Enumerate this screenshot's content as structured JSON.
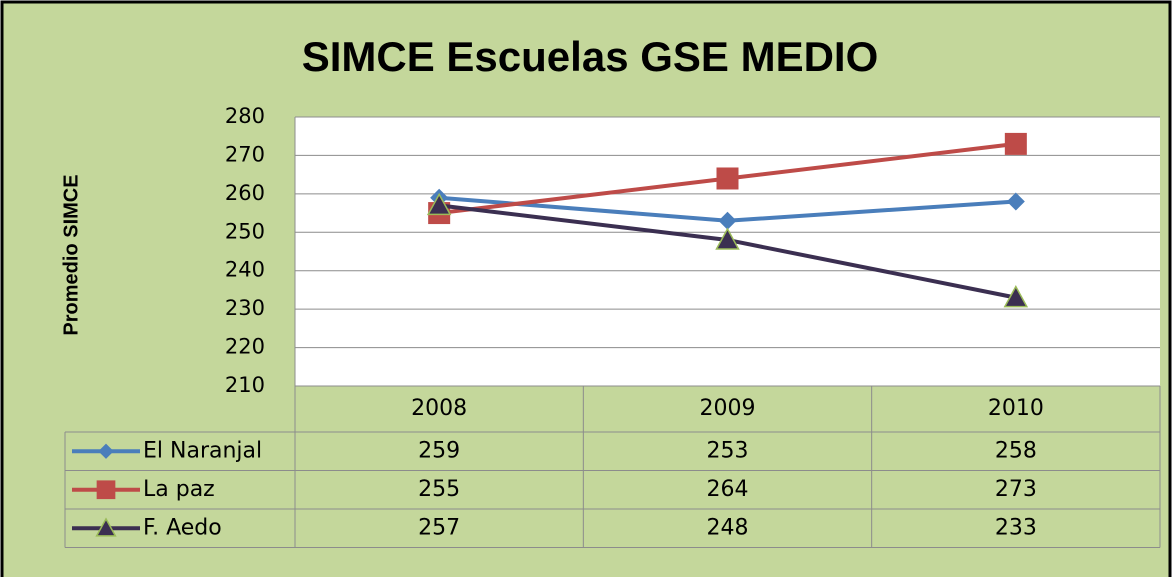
{
  "chart_data": {
    "type": "line",
    "title": "SIMCE Escuelas GSE MEDIO",
    "y_label": "Promedio SIMCE",
    "categories": [
      "2008",
      "2009",
      "2010"
    ],
    "series": [
      {
        "name": "El Naranjal",
        "color": "#4a7ebb",
        "marker": "diamond",
        "values": [
          259,
          253,
          258
        ]
      },
      {
        "name": "La paz",
        "color": "#be4b48",
        "marker": "square",
        "values": [
          255,
          264,
          273
        ]
      },
      {
        "name": "F. Aedo",
        "color": "#3b2f51",
        "marker": "triangle",
        "values": [
          257,
          248,
          233
        ]
      }
    ],
    "ylim": [
      210,
      280
    ],
    "yticks": [
      210,
      220,
      230,
      240,
      250,
      260,
      270,
      280
    ],
    "grid": true,
    "data_table": true
  }
}
